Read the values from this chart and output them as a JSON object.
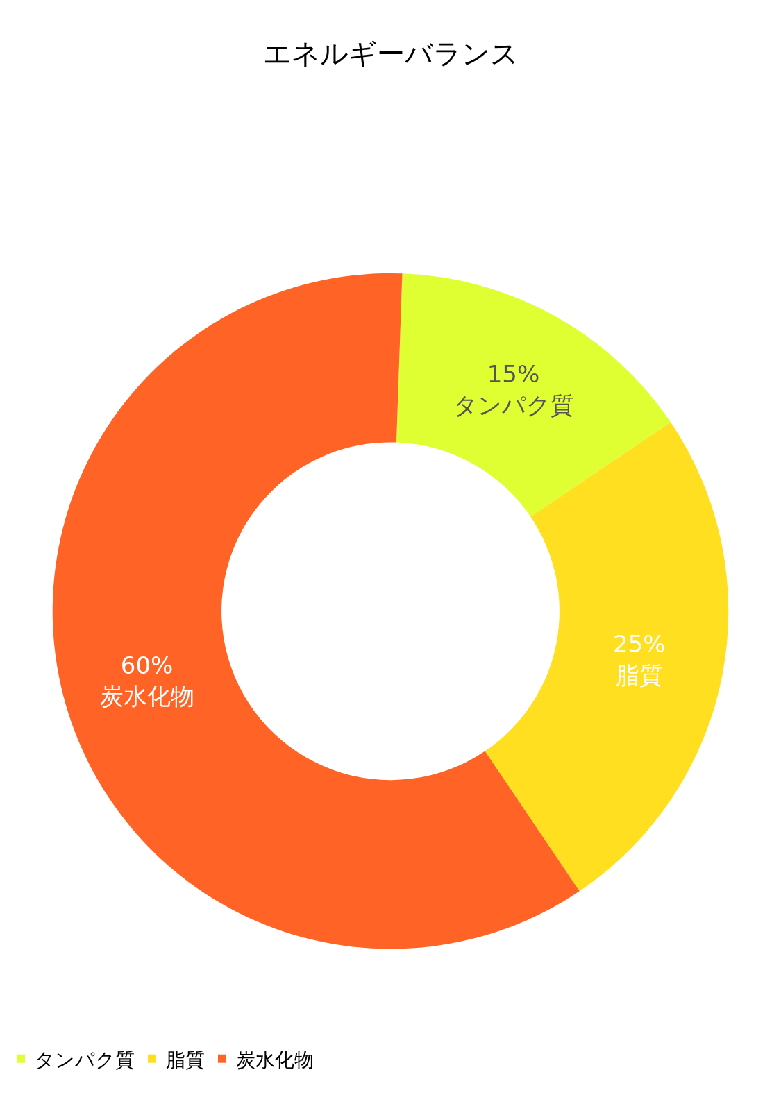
{
  "chart_data": {
    "type": "donut",
    "title": "エネルギーバランス",
    "categories": [
      "タンパク質",
      "脂質",
      "炭水化物"
    ],
    "values": [
      15,
      25,
      60
    ],
    "value_labels": [
      "15%",
      "25%",
      "60%"
    ],
    "colors": [
      "#dfff33",
      "#ffdf1f",
      "#ff6426"
    ],
    "legend": "bottom left"
  }
}
